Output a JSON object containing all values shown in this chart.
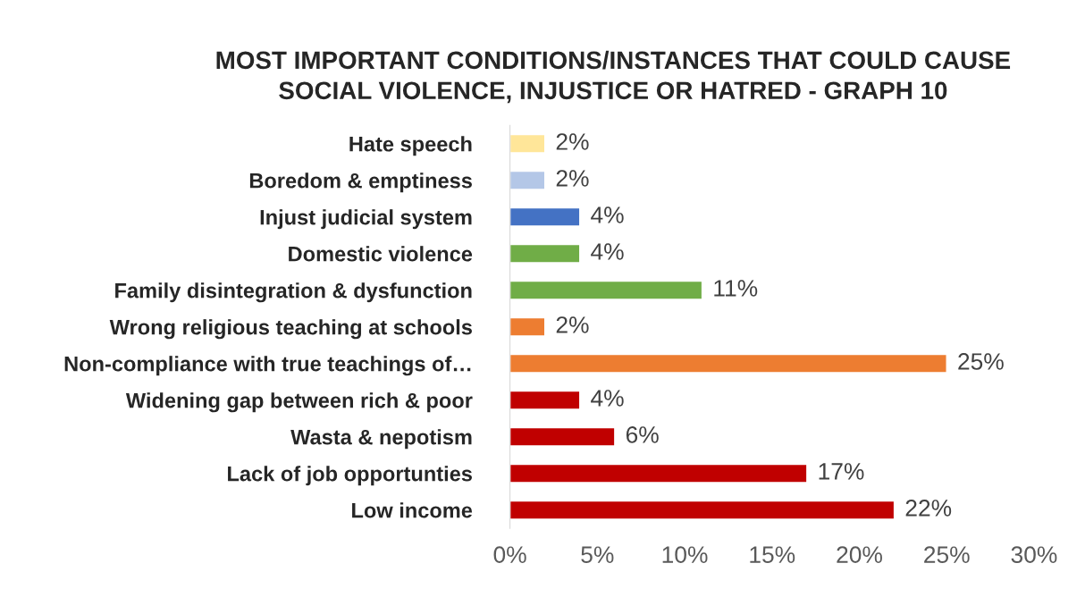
{
  "chart_data": {
    "type": "bar",
    "orientation": "horizontal",
    "title": "MOST IMPORTANT CONDITIONS/INSTANCES THAT COULD CAUSE\nSOCIAL VIOLENCE, INJUSTICE OR HATRED - GRAPH 10",
    "categories": [
      "Hate speech",
      "Boredom & emptiness",
      "Injust judicial system",
      "Domestic violence",
      "Family disintegration & dysfunction",
      "Wrong religious teaching at schools",
      "Non-compliance with true teachings of…",
      "Widening gap between rich & poor",
      "Wasta & nepotism",
      "Lack of job opportunties",
      "Low income"
    ],
    "values": [
      2,
      2,
      4,
      4,
      11,
      2,
      25,
      4,
      6,
      17,
      22
    ],
    "colors": [
      "#ffe699",
      "#b4c7e7",
      "#4472c4",
      "#70ad47",
      "#70ad47",
      "#ed7d31",
      "#ed7d31",
      "#c00000",
      "#c00000",
      "#c00000",
      "#c00000"
    ],
    "value_labels": [
      "2%",
      "2%",
      "4%",
      "4%",
      "11%",
      "2%",
      "25%",
      "4%",
      "6%",
      "17%",
      "22%"
    ],
    "xlim": [
      0,
      30
    ],
    "xticks": [
      {
        "value": 0,
        "label": "0%"
      },
      {
        "value": 5,
        "label": "5%"
      },
      {
        "value": 10,
        "label": "10%"
      },
      {
        "value": 15,
        "label": "15%"
      },
      {
        "value": 20,
        "label": "20%"
      },
      {
        "value": 25,
        "label": "25%"
      },
      {
        "value": 30,
        "label": "30%"
      }
    ],
    "grid": false,
    "legend": false
  }
}
